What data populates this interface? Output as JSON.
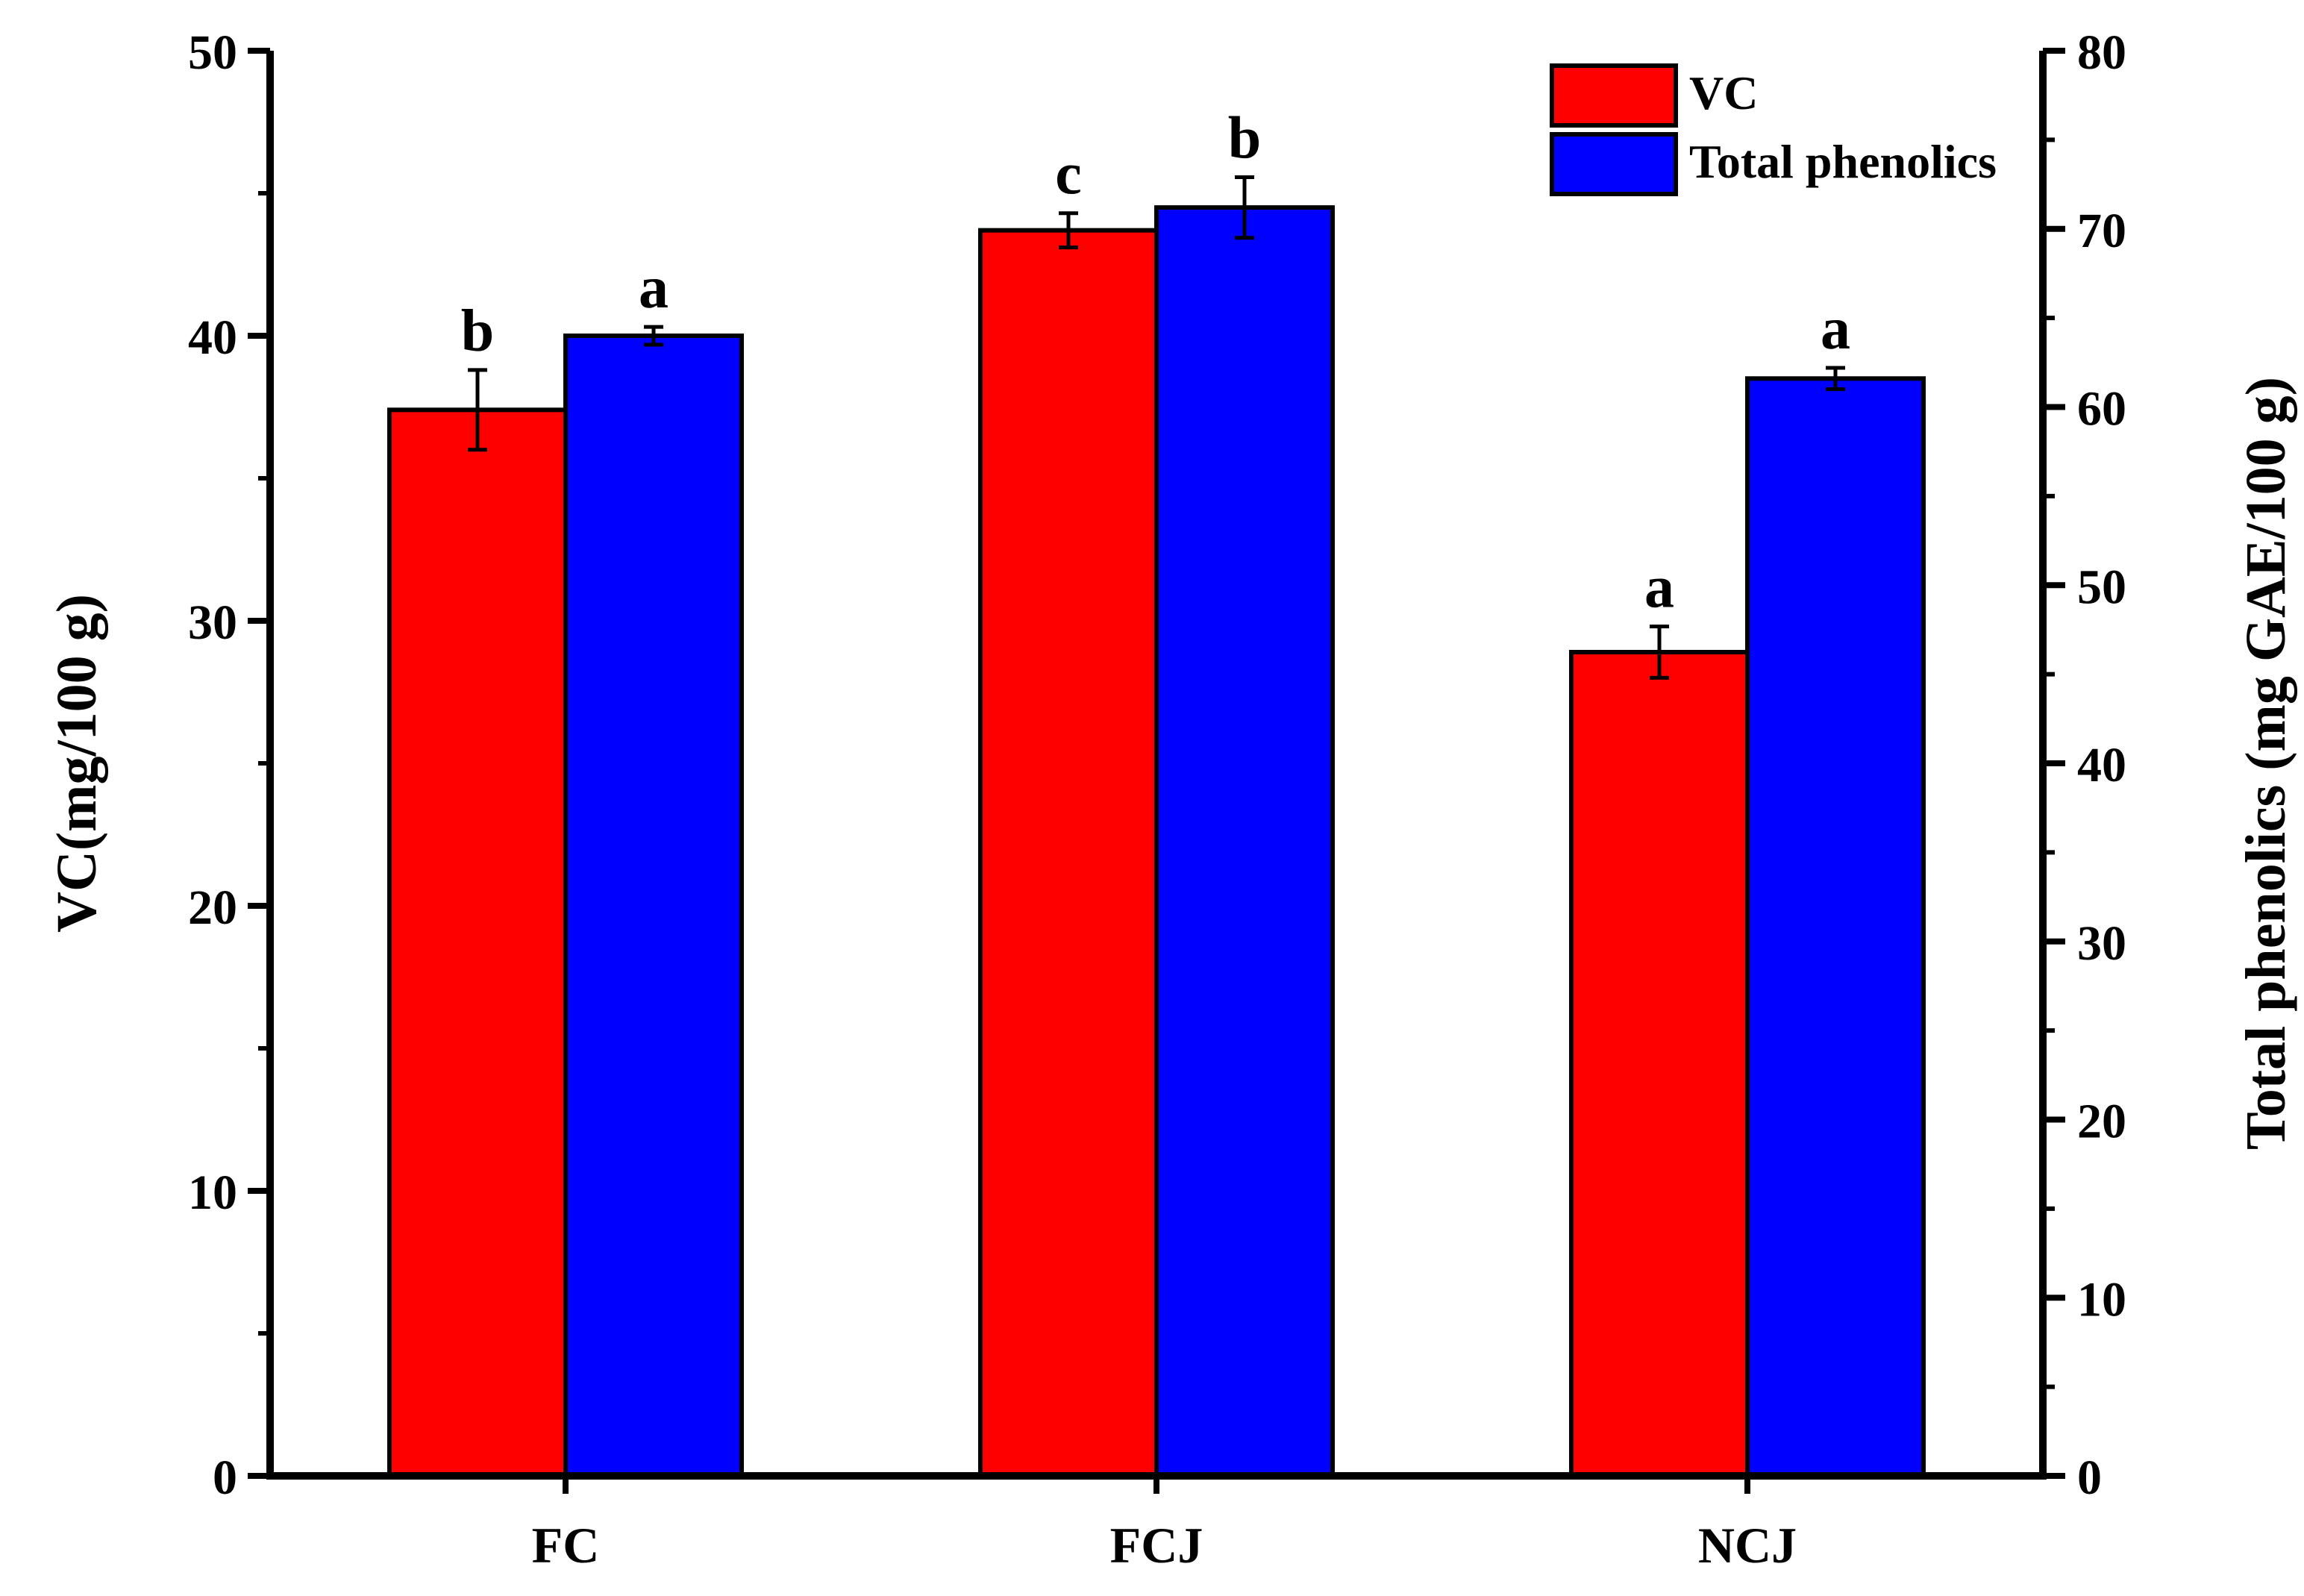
{
  "chart_data": {
    "type": "bar",
    "categories": [
      "FC",
      "FCJ",
      "NCJ"
    ],
    "series": [
      {
        "name": "VC",
        "axis": "left",
        "color": "#ff0000",
        "values": [
          37.4,
          43.7,
          28.9
        ],
        "errors": [
          1.4,
          0.6,
          0.9
        ],
        "letters": [
          "b",
          "c",
          "a"
        ]
      },
      {
        "name": "Total phenolics",
        "axis": "right",
        "color": "#0000ff",
        "values": [
          64.0,
          71.2,
          61.6
        ],
        "errors": [
          0.5,
          1.7,
          0.6
        ],
        "letters": [
          "a",
          "b",
          "a"
        ]
      }
    ],
    "ylabel": "VC(mg/100 g)",
    "ylim": [
      0,
      50
    ],
    "yticks": [
      0,
      10,
      20,
      30,
      40,
      50
    ],
    "y2label": "Total phenolics (mg GAE/100 g)",
    "y2lim": [
      0,
      80
    ],
    "y2ticks": [
      0,
      10,
      20,
      30,
      40,
      50,
      60,
      70,
      80
    ],
    "legend_position": "top-right",
    "grid": false
  }
}
